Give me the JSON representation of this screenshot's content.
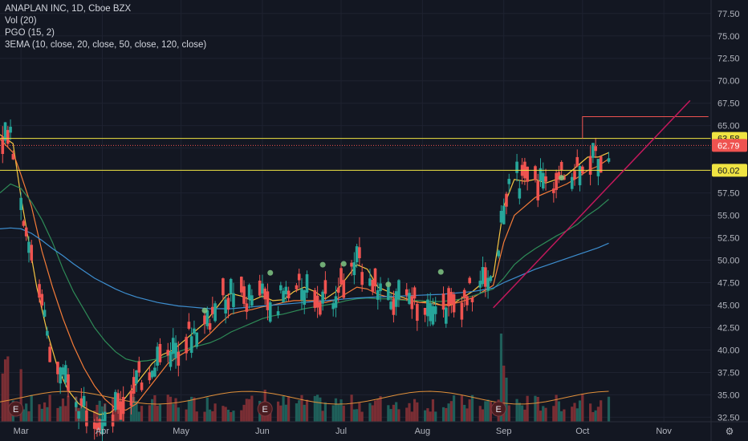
{
  "legend": {
    "title": "ANAPLAN INC, 1D, Cboe BZX",
    "vol": "Vol (20)",
    "pgo": "PGO (15, 2)",
    "ema": "3EMA (10, close, 20, close, 50, close, 120, close)"
  },
  "colors": {
    "background": "#131722",
    "grid": "#1e2230",
    "text": "#b2b5be",
    "up": "#26a69a",
    "down": "#ef5350",
    "vol_up": "#1f5f5a",
    "vol_down": "#7a2e34",
    "hline": "#f0e442",
    "trend": "#c2185b",
    "ema10": "#f5c542",
    "ema20": "#f57c38",
    "ema50": "#2e8b57",
    "ema120": "#3d8ecf",
    "vol_ma": "#e0903a",
    "signal_dot": "#81c784",
    "event_marker": "#4a1c20"
  },
  "chart_data": {
    "type": "candlestick",
    "title": "ANAPLAN INC, 1D, Cboe BZX",
    "y_axis": {
      "ylim": [
        32.0,
        79.0
      ],
      "ticks": [
        32.5,
        35.0,
        37.5,
        40.0,
        42.5,
        45.0,
        47.5,
        50.0,
        52.5,
        55.0,
        57.5,
        60.0,
        62.5,
        65.0,
        67.5,
        70.0,
        72.5,
        75.0,
        77.5
      ],
      "tick_labels": [
        "32.50",
        "35.00",
        "37.50",
        "40.00",
        "42.50",
        "45.00",
        "47.50",
        "50.00",
        "52.50",
        "55.00",
        "57.50",
        "60.00",
        "62.50",
        "65.00",
        "67.50",
        "70.00",
        "72.50",
        "75.00",
        "77.50"
      ]
    },
    "x_axis": {
      "range_days": [
        -8,
        263
      ],
      "ticks": [
        {
          "label": "Mar",
          "day": 0
        },
        {
          "label": "Apr",
          "day": 31
        },
        {
          "label": "May",
          "day": 61
        },
        {
          "label": "Jun",
          "day": 92
        },
        {
          "label": "Jul",
          "day": 122
        },
        {
          "label": "Aug",
          "day": 153
        },
        {
          "label": "Sep",
          "day": 184
        },
        {
          "label": "Oct",
          "day": 214
        },
        {
          "label": "Nov",
          "day": 245
        }
      ]
    },
    "horizontal_lines": [
      {
        "value": 63.58,
        "label": "63.58",
        "style": "solid"
      },
      {
        "value": 60.02,
        "label": "60.02",
        "style": "solid"
      },
      {
        "value": 62.79,
        "label": "62.79",
        "style": "dotted",
        "kind": "last_price"
      }
    ],
    "resistance_box": {
      "from_day": 214,
      "to_day": 262,
      "value": 66.0
    },
    "trendline": {
      "from": [
        180,
        44.7
      ],
      "to": [
        255,
        67.8
      ]
    },
    "event_markers": {
      "label": "E",
      "days": [
        -2,
        93,
        182
      ]
    },
    "series": [
      {
        "name": "EMA 10",
        "color_key": "ema10",
        "points": [
          [
            -8,
            64.0
          ],
          [
            -3,
            63.0
          ],
          [
            0,
            57.0
          ],
          [
            3,
            52.0
          ],
          [
            6,
            47.0
          ],
          [
            10,
            42.0
          ],
          [
            14,
            38.0
          ],
          [
            18,
            35.5
          ],
          [
            22,
            34.0
          ],
          [
            26,
            33.3
          ],
          [
            30,
            32.8
          ],
          [
            34,
            33.0
          ],
          [
            38,
            34.0
          ],
          [
            42,
            35.5
          ],
          [
            46,
            37.0
          ],
          [
            50,
            38.5
          ],
          [
            54,
            39.5
          ],
          [
            58,
            40.0
          ],
          [
            62,
            41.0
          ],
          [
            66,
            42.0
          ],
          [
            70,
            43.0
          ],
          [
            74,
            44.5
          ],
          [
            78,
            46.0
          ],
          [
            80,
            46.3
          ],
          [
            84,
            46.0
          ],
          [
            88,
            45.5
          ],
          [
            92,
            46.0
          ],
          [
            96,
            45.5
          ],
          [
            100,
            45.6
          ],
          [
            104,
            46.5
          ],
          [
            108,
            47.0
          ],
          [
            112,
            46.5
          ],
          [
            116,
            45.7
          ],
          [
            120,
            46.5
          ],
          [
            124,
            48.0
          ],
          [
            128,
            49.5
          ],
          [
            132,
            49.0
          ],
          [
            136,
            47.0
          ],
          [
            140,
            46.5
          ],
          [
            144,
            46.0
          ],
          [
            148,
            45.6
          ],
          [
            152,
            45.3
          ],
          [
            156,
            45.4
          ],
          [
            160,
            45.0
          ],
          [
            164,
            45.0
          ],
          [
            168,
            45.8
          ],
          [
            172,
            46.5
          ],
          [
            176,
            47.5
          ],
          [
            180,
            48.2
          ],
          [
            184,
            56.0
          ],
          [
            188,
            59.0
          ],
          [
            192,
            58.8
          ],
          [
            196,
            59.0
          ],
          [
            200,
            58.6
          ],
          [
            204,
            59.0
          ],
          [
            208,
            59.5
          ],
          [
            212,
            60.5
          ],
          [
            216,
            61.5
          ],
          [
            220,
            61.5
          ],
          [
            224,
            62.0
          ]
        ]
      },
      {
        "name": "EMA 20",
        "color_key": "ema20",
        "points": [
          [
            -8,
            63.5
          ],
          [
            -3,
            62.0
          ],
          [
            0,
            59.5
          ],
          [
            4,
            56.0
          ],
          [
            8,
            51.0
          ],
          [
            12,
            47.0
          ],
          [
            16,
            43.5
          ],
          [
            20,
            40.5
          ],
          [
            24,
            38.0
          ],
          [
            28,
            36.0
          ],
          [
            32,
            34.5
          ],
          [
            36,
            33.5
          ],
          [
            40,
            33.3
          ],
          [
            44,
            34.0
          ],
          [
            48,
            35.5
          ],
          [
            52,
            37.0
          ],
          [
            56,
            38.5
          ],
          [
            60,
            39.3
          ],
          [
            64,
            40.0
          ],
          [
            68,
            40.8
          ],
          [
            72,
            41.8
          ],
          [
            76,
            43.0
          ],
          [
            80,
            44.0
          ],
          [
            84,
            44.3
          ],
          [
            88,
            44.5
          ],
          [
            92,
            44.8
          ],
          [
            96,
            45.0
          ],
          [
            100,
            45.3
          ],
          [
            104,
            45.5
          ],
          [
            108,
            45.5
          ],
          [
            112,
            45.5
          ],
          [
            116,
            45.3
          ],
          [
            120,
            45.6
          ],
          [
            124,
            46.3
          ],
          [
            128,
            47.0
          ],
          [
            132,
            46.8
          ],
          [
            136,
            46.2
          ],
          [
            140,
            45.9
          ],
          [
            144,
            45.7
          ],
          [
            148,
            45.5
          ],
          [
            152,
            45.3
          ],
          [
            156,
            45.2
          ],
          [
            160,
            45.0
          ],
          [
            164,
            45.1
          ],
          [
            168,
            45.4
          ],
          [
            172,
            45.8
          ],
          [
            176,
            46.5
          ],
          [
            180,
            47.2
          ],
          [
            184,
            52.0
          ],
          [
            188,
            55.0
          ],
          [
            192,
            56.0
          ],
          [
            196,
            57.0
          ],
          [
            200,
            57.5
          ],
          [
            204,
            58.0
          ],
          [
            208,
            58.5
          ],
          [
            212,
            59.2
          ],
          [
            216,
            60.0
          ],
          [
            220,
            60.5
          ],
          [
            224,
            61.3
          ]
        ]
      },
      {
        "name": "EMA 50",
        "color_key": "ema50",
        "points": [
          [
            -8,
            57.5
          ],
          [
            -4,
            58.5
          ],
          [
            0,
            58.0
          ],
          [
            4,
            56.5
          ],
          [
            8,
            54.5
          ],
          [
            12,
            52.0
          ],
          [
            16,
            49.0
          ],
          [
            20,
            46.5
          ],
          [
            24,
            44.5
          ],
          [
            28,
            42.5
          ],
          [
            32,
            41.0
          ],
          [
            36,
            39.8
          ],
          [
            40,
            39.0
          ],
          [
            44,
            38.7
          ],
          [
            48,
            38.8
          ],
          [
            52,
            39.0
          ],
          [
            56,
            39.4
          ],
          [
            60,
            39.8
          ],
          [
            64,
            40.2
          ],
          [
            68,
            40.5
          ],
          [
            72,
            40.8
          ],
          [
            76,
            41.3
          ],
          [
            80,
            42.0
          ],
          [
            84,
            42.5
          ],
          [
            88,
            43.0
          ],
          [
            92,
            43.5
          ],
          [
            96,
            43.8
          ],
          [
            100,
            44.0
          ],
          [
            104,
            44.3
          ],
          [
            108,
            44.6
          ],
          [
            112,
            44.8
          ],
          [
            116,
            45.0
          ],
          [
            120,
            45.2
          ],
          [
            124,
            45.5
          ],
          [
            128,
            45.7
          ],
          [
            132,
            45.8
          ],
          [
            136,
            45.7
          ],
          [
            140,
            45.7
          ],
          [
            144,
            45.6
          ],
          [
            148,
            45.5
          ],
          [
            152,
            45.5
          ],
          [
            156,
            45.4
          ],
          [
            160,
            45.4
          ],
          [
            164,
            45.5
          ],
          [
            168,
            45.7
          ],
          [
            172,
            46.0
          ],
          [
            176,
            46.4
          ],
          [
            180,
            46.8
          ],
          [
            184,
            48.0
          ],
          [
            188,
            49.5
          ],
          [
            192,
            50.5
          ],
          [
            196,
            51.3
          ],
          [
            200,
            52.0
          ],
          [
            204,
            52.7
          ],
          [
            208,
            53.3
          ],
          [
            212,
            54.0
          ],
          [
            216,
            55.0
          ],
          [
            220,
            55.8
          ],
          [
            224,
            56.8
          ]
        ]
      },
      {
        "name": "EMA 120",
        "color_key": "ema120",
        "points": [
          [
            -8,
            53.5
          ],
          [
            -4,
            53.6
          ],
          [
            0,
            53.5
          ],
          [
            4,
            53.0
          ],
          [
            8,
            52.2
          ],
          [
            12,
            51.3
          ],
          [
            16,
            50.5
          ],
          [
            20,
            49.6
          ],
          [
            24,
            48.8
          ],
          [
            28,
            48.0
          ],
          [
            32,
            47.4
          ],
          [
            36,
            46.8
          ],
          [
            40,
            46.3
          ],
          [
            44,
            45.9
          ],
          [
            48,
            45.6
          ],
          [
            52,
            45.3
          ],
          [
            56,
            45.1
          ],
          [
            60,
            44.9
          ],
          [
            64,
            44.8
          ],
          [
            68,
            44.7
          ],
          [
            72,
            44.6
          ],
          [
            76,
            44.6
          ],
          [
            80,
            44.6
          ],
          [
            84,
            44.7
          ],
          [
            88,
            44.8
          ],
          [
            92,
            44.9
          ],
          [
            96,
            45.0
          ],
          [
            100,
            45.1
          ],
          [
            104,
            45.2
          ],
          [
            108,
            45.3
          ],
          [
            112,
            45.4
          ],
          [
            116,
            45.5
          ],
          [
            120,
            45.6
          ],
          [
            124,
            45.7
          ],
          [
            128,
            45.8
          ],
          [
            132,
            45.85
          ],
          [
            136,
            45.9
          ],
          [
            140,
            45.95
          ],
          [
            144,
            46.0
          ],
          [
            148,
            46.05
          ],
          [
            152,
            46.1
          ],
          [
            156,
            46.15
          ],
          [
            160,
            46.2
          ],
          [
            164,
            46.3
          ],
          [
            168,
            46.4
          ],
          [
            172,
            46.5
          ],
          [
            176,
            46.7
          ],
          [
            180,
            46.9
          ],
          [
            184,
            47.5
          ],
          [
            188,
            48.0
          ],
          [
            192,
            48.5
          ],
          [
            196,
            49.0
          ],
          [
            200,
            49.4
          ],
          [
            204,
            49.8
          ],
          [
            208,
            50.2
          ],
          [
            212,
            50.6
          ],
          [
            216,
            51.0
          ],
          [
            220,
            51.4
          ],
          [
            224,
            51.9
          ]
        ]
      }
    ]
  },
  "x_axis_labels": [
    "Mar",
    "Apr",
    "May",
    "Jun",
    "Jul",
    "Aug",
    "Sep",
    "Oct",
    "Nov"
  ],
  "price_labels": {
    "upper": "63.58",
    "last": "62.79",
    "lower": "60.02"
  }
}
